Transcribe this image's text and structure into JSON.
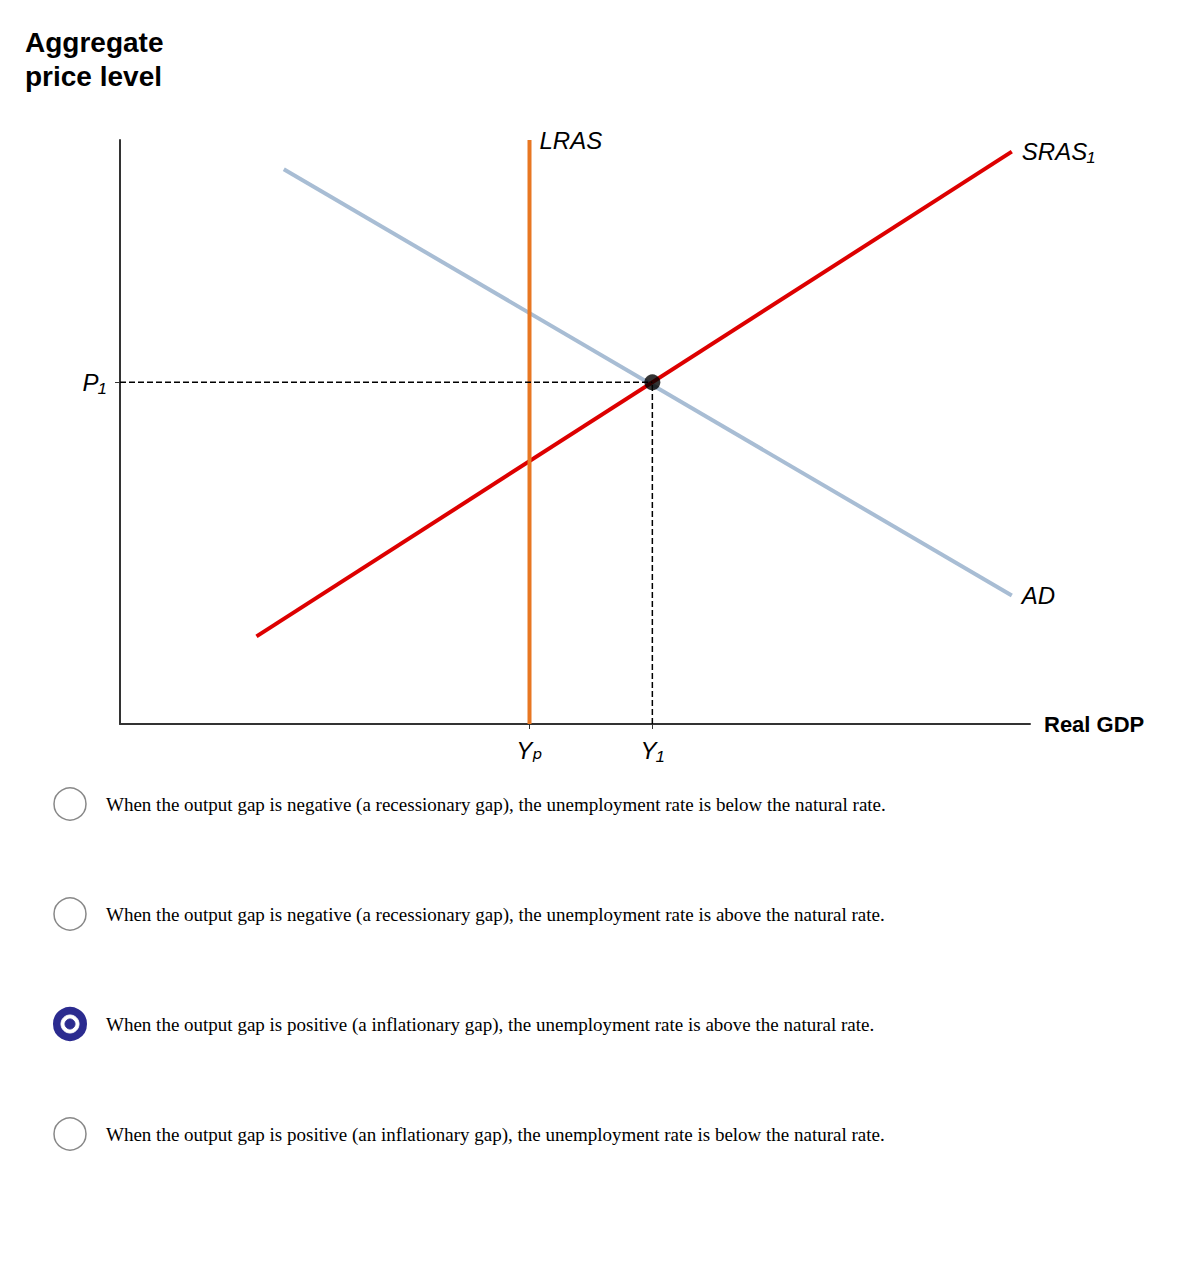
{
  "chart_data": {
    "type": "line",
    "title": "Aggregate\nprice level",
    "xlabel": "Real GDP",
    "xlim": [
      0,
      10
    ],
    "ylim": [
      0,
      10
    ],
    "xticks": [
      {
        "value": 4.5,
        "label": "Yₚ"
      },
      {
        "value": 5.85,
        "label": "Y₁"
      }
    ],
    "yticks": [
      {
        "value": 5.85,
        "label": "P₁"
      }
    ],
    "grid": false,
    "series": [
      {
        "name": "AD",
        "color": "#a8bdd4",
        "x": [
          1.8,
          9.8
        ],
        "values": [
          9.5,
          2.2
        ]
      },
      {
        "name": "SRAS₁",
        "color": "#dd0000",
        "x": [
          1.5,
          9.8
        ],
        "values": [
          1.5,
          9.8
        ]
      },
      {
        "name": "LRAS",
        "color": "#E87722",
        "x": [
          4.5,
          4.5
        ],
        "values": [
          0,
          10
        ]
      },
      {
        "type": "scatter",
        "color": "#000000",
        "x": [
          5.85
        ],
        "values": [
          5.85
        ]
      }
    ],
    "options": [
      {
        "text": "When the output gap is negative (a recessionary gap), the unemployment rate is below the natural rate.",
        "selected": false
      },
      {
        "text": "When the output gap is negative (a recessionary gap), the unemployment rate is above the natural rate.",
        "selected": false
      },
      {
        "text": "When the output gap is positive (a inflationary gap), the unemployment rate is above the natural rate.",
        "selected": true
      },
      {
        "text": "When the output gap is positive (an inflationary gap), the unemployment rate is below the natural rate.",
        "selected": false
      }
    ],
    "option_colors": {
      "selected": "#2b2b8f",
      "unselected": "#888888"
    }
  }
}
